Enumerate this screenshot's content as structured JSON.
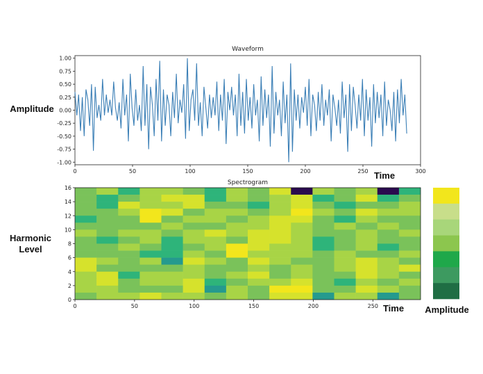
{
  "chart_data": [
    {
      "type": "line",
      "title": "Waveform",
      "xlabel": "Time",
      "ylabel": "Amplitude",
      "xlim": [
        0,
        300
      ],
      "ylim": [
        -1.05,
        1.05
      ],
      "xticks": [
        "0",
        "50",
        "100",
        "150",
        "200",
        "250",
        "300"
      ],
      "yticks": [
        "1.00",
        "0.75",
        "0.50",
        "0.25",
        "0.00",
        "-0.25",
        "-0.50",
        "-0.75",
        "-1.00"
      ],
      "series": [
        {
          "color": "#3b7fb6",
          "values": [
            0.35,
            -0.1,
            0.3,
            -0.4,
            0.25,
            -0.5,
            0.4,
            0.2,
            -0.3,
            0.5,
            -0.78,
            0.45,
            -0.15,
            0.1,
            -0.2,
            0.6,
            -0.1,
            0.3,
            -0.05,
            0.2,
            -0.1,
            0.55,
            0.05,
            -0.2,
            0.15,
            -0.35,
            0.6,
            -0.1,
            0.3,
            -0.6,
            0.7,
            0.05,
            -0.3,
            0.4,
            -0.2,
            0.1,
            -0.4,
            0.85,
            -0.3,
            0.5,
            -0.75,
            0.45,
            0.1,
            -0.5,
            0.6,
            -0.2,
            0.95,
            -0.6,
            0.4,
            -0.3,
            0.3,
            0.1,
            -0.5,
            0.35,
            -0.15,
            0.7,
            -0.25,
            0.2,
            -0.05,
            0.5,
            -0.55,
            1.0,
            -0.4,
            0.2,
            0.4,
            -0.2,
            0.9,
            -0.3,
            0.15,
            -0.5,
            0.45,
            0.05,
            -0.35,
            0.3,
            -0.15,
            0.25,
            -0.1,
            0.55,
            -0.4,
            0.3,
            -0.2,
            0.6,
            -0.65,
            0.35,
            0.0,
            0.45,
            -0.1,
            0.3,
            -0.5,
            0.7,
            -0.3,
            0.35,
            -0.45,
            0.6,
            -0.2,
            0.25,
            -0.35,
            0.5,
            -0.1,
            0.2,
            -0.6,
            0.65,
            -0.3,
            0.4,
            -0.15,
            0.3,
            -0.7,
            0.85,
            -0.45,
            0.35,
            -0.1,
            0.2,
            -0.5,
            0.55,
            -0.25,
            0.3,
            -1.0,
            0.9,
            -0.8,
            0.4,
            -0.2,
            0.3,
            -0.35,
            0.25,
            -0.05,
            0.45,
            -0.3,
            0.6,
            -0.5,
            0.3,
            0.1,
            -0.4,
            0.35,
            -0.2,
            0.5,
            -0.3,
            0.2,
            -0.1,
            0.4,
            -0.6,
            0.3,
            0.05,
            -0.3,
            0.2,
            -0.45,
            0.55,
            -0.15,
            0.3,
            -0.8,
            0.5,
            -0.4,
            0.45,
            0.1,
            -0.35,
            0.3,
            -0.2,
            0.6,
            -0.5,
            0.4,
            -0.2,
            0.25,
            -0.7,
            0.5,
            -0.25,
            0.35,
            -0.15,
            0.3,
            -0.5,
            0.55,
            -0.3,
            0.2,
            0.0,
            -0.4,
            0.35,
            -0.6,
            0.4,
            -0.25,
            0.6,
            -0.1,
            0.3,
            -0.45
          ],
          "x_step": 1.6
        }
      ]
    },
    {
      "type": "heatmap",
      "title": "Spectrogram",
      "xlabel": "Time",
      "ylabel": "Harmonic Level",
      "colorbar_label": "Amplitude",
      "xlim": [
        0,
        290
      ],
      "ylim": [
        0,
        16
      ],
      "xticks": [
        "0",
        "50",
        "100",
        "150",
        "200",
        "250"
      ],
      "yticks": [
        "0",
        "2",
        "4",
        "6",
        "8",
        "10",
        "12",
        "14",
        "16"
      ],
      "columns": 16,
      "rows": 16,
      "colormap": [
        "#2a0a4e",
        "#2b5f8f",
        "#259a8e",
        "#2eb47a",
        "#7ac25a",
        "#a8d446",
        "#d6e22c",
        "#f2e61c"
      ],
      "colorbar_colors": [
        "#f2e61c",
        "#c8de8a",
        "#a8d67a",
        "#8cc64e",
        "#1fa84a",
        "#3d9a60",
        "#1f6e44"
      ],
      "cells": [
        [
          4,
          5,
          3,
          5,
          5,
          4,
          3,
          5,
          4,
          6,
          0,
          5,
          4,
          5,
          0,
          3
        ],
        [
          4,
          3,
          4,
          5,
          6,
          6,
          3,
          5,
          4,
          5,
          6,
          3,
          4,
          6,
          3,
          4
        ],
        [
          4,
          3,
          6,
          5,
          5,
          6,
          4,
          4,
          3,
          5,
          6,
          4,
          3,
          4,
          4,
          5
        ],
        [
          4,
          4,
          5,
          7,
          6,
          4,
          5,
          5,
          4,
          5,
          7,
          5,
          4,
          6,
          5,
          5
        ],
        [
          3,
          4,
          4,
          7,
          4,
          5,
          5,
          4,
          5,
          6,
          6,
          4,
          3,
          5,
          4,
          4
        ],
        [
          4,
          4,
          4,
          4,
          5,
          4,
          4,
          5,
          5,
          6,
          5,
          4,
          5,
          4,
          5,
          4
        ],
        [
          5,
          4,
          5,
          5,
          4,
          5,
          6,
          5,
          6,
          6,
          5,
          4,
          4,
          5,
          4,
          5
        ],
        [
          4,
          3,
          4,
          5,
          3,
          5,
          5,
          4,
          6,
          6,
          5,
          3,
          4,
          5,
          4,
          4
        ],
        [
          4,
          4,
          5,
          4,
          3,
          4,
          5,
          7,
          6,
          5,
          5,
          3,
          4,
          5,
          3,
          4
        ],
        [
          4,
          4,
          4,
          3,
          3,
          5,
          4,
          7,
          5,
          5,
          5,
          4,
          5,
          4,
          4,
          5
        ],
        [
          6,
          5,
          4,
          5,
          2,
          6,
          5,
          4,
          6,
          5,
          4,
          4,
          5,
          6,
          5,
          4
        ],
        [
          6,
          4,
          4,
          4,
          4,
          5,
          4,
          4,
          5,
          4,
          5,
          4,
          5,
          6,
          5,
          6
        ],
        [
          5,
          6,
          3,
          5,
          5,
          5,
          4,
          5,
          6,
          4,
          5,
          4,
          4,
          6,
          5,
          4
        ],
        [
          5,
          6,
          4,
          5,
          5,
          6,
          3,
          4,
          5,
          5,
          6,
          4,
          3,
          5,
          4,
          5
        ],
        [
          5,
          5,
          4,
          4,
          4,
          6,
          2,
          5,
          4,
          7,
          7,
          4,
          4,
          6,
          5,
          4
        ],
        [
          4,
          5,
          5,
          6,
          5,
          5,
          4,
          5,
          4,
          6,
          6,
          2,
          5,
          5,
          2,
          4
        ]
      ]
    }
  ]
}
